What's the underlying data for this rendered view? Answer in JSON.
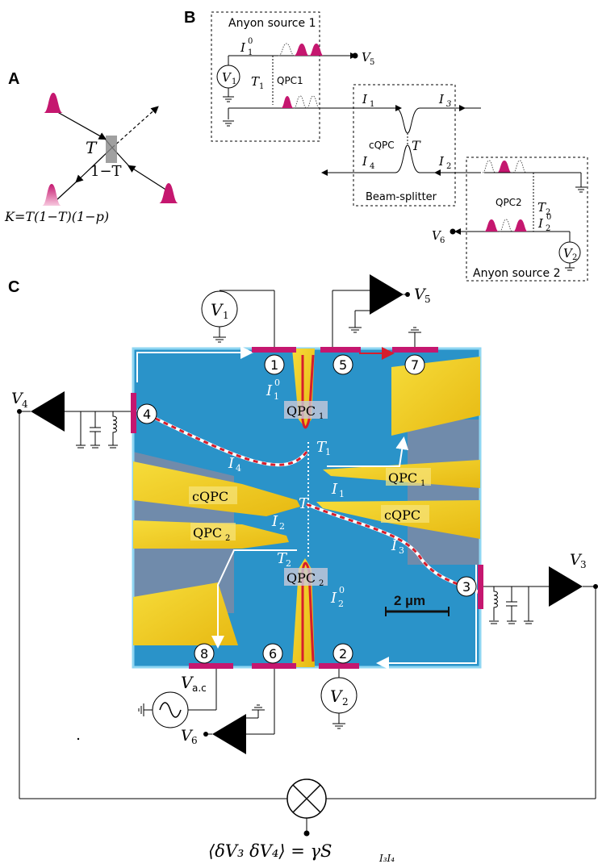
{
  "panels": {
    "a": "A",
    "b": "B",
    "c": "C"
  },
  "panel_a": {
    "T": "T",
    "one_minus_T": "1−T",
    "K_formula": "K=T(1−T)(1−p)"
  },
  "panel_b": {
    "anyon_source_1": "Anyon source 1",
    "anyon_source_2": "Anyon source 2",
    "beam_splitter": "Beam-splitter",
    "qpc1": "QPC1",
    "qpc2": "QPC2",
    "cqpc": "cQPC",
    "T": "T",
    "T1": "T",
    "T1_sub": "1",
    "T2": "T",
    "T2_sub": "2",
    "I1_0": "I",
    "I1_0_sub": "1",
    "I1_0_sup": "0",
    "I2_0": "I",
    "I2_0_sub": "2",
    "I2_0_sup": "0",
    "I1": "I",
    "I1_sub": "1",
    "I2": "I",
    "I2_sub": "2",
    "I3": "I",
    "I3_sub": "3",
    "I4": "I",
    "I4_sub": "4",
    "V1": "V",
    "V1_sub": "1",
    "V2": "V",
    "V2_sub": "2",
    "V5": "V",
    "V5_sub": "5",
    "V6": "V",
    "V6_sub": "6"
  },
  "panel_c": {
    "contacts": [
      "1",
      "2",
      "3",
      "4",
      "5",
      "6",
      "7",
      "8"
    ],
    "V1": "V",
    "V1_sub": "1",
    "V2": "V",
    "V2_sub": "2",
    "V3": "V",
    "V3_sub": "3",
    "V4": "V",
    "V4_sub": "4",
    "V5": "V",
    "V5_sub": "5",
    "V6": "V",
    "V6_sub": "6",
    "Vac": "V",
    "Vac_sub": "a.c",
    "qpc1_top": "QPC",
    "qpc1_top_sub": "1",
    "qpc1_right": "QPC",
    "qpc1_right_sub": "1",
    "qpc2_left": "QPC",
    "qpc2_left_sub": "2",
    "qpc2_bottom": "QPC",
    "qpc2_bottom_sub": "2",
    "cqpc_left": "cQPC",
    "cqpc_right": "cQPC",
    "I1_0": "I",
    "I1_0_sub": "1",
    "I1_0_sup": "0",
    "I2_0": "I",
    "I2_0_sub": "2",
    "I2_0_sup": "0",
    "I1": "I",
    "I1_sub": "1",
    "I2": "I",
    "I2_sub": "2",
    "I3": "I",
    "I3_sub": "3",
    "I4": "I",
    "I4_sub": "4",
    "T": "T",
    "T1": "T",
    "T1_sub": "1",
    "T2": "T",
    "T2_sub": "2",
    "scale_bar": "2 µm",
    "correlation_formula": "⟨δV₃ δV₄⟩ = γS",
    "correlation_sub": "I₃I₄"
  },
  "colors": {
    "sample_blue": "#2a93c9",
    "gate_yellow": "#f2d21a",
    "contact_magenta": "#c5176f",
    "red_path": "#d61e2c"
  }
}
